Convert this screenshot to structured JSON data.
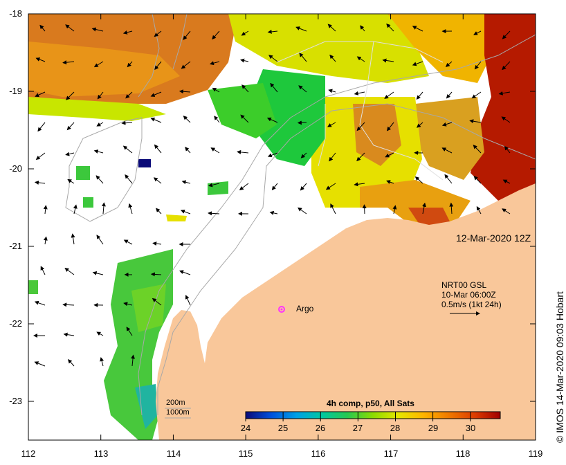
{
  "map": {
    "timestamp_label": "12-Mar-2020 12Z",
    "current_legend": {
      "line1": "NRT00 GSL",
      "line2": "10-Mar 06:00Z",
      "line3": "0.5m/s (1kt 24h)"
    },
    "depth_legend": {
      "shallow": "200m",
      "deep": "1000m"
    },
    "marker": {
      "label": "Argo",
      "color": "#ff33ff"
    },
    "land_color": "#f9c79a",
    "credit": "IMOS 14-Mar-2020 09:03 Hobart",
    "copyright_symbol": "©",
    "colorbar": {
      "title": "4h comp, p50, All Sats",
      "ticks": [
        "24",
        "25",
        "26",
        "27",
        "28",
        "29",
        "30"
      ],
      "min": 24,
      "max": 30.8,
      "colors": [
        "#0a0a78",
        "#0050dc",
        "#00a0e6",
        "#00c8a0",
        "#28c850",
        "#8cdc00",
        "#e6e600",
        "#ffb400",
        "#f07800",
        "#dc3c00",
        "#a00000"
      ]
    },
    "axes": {
      "x_ticks": [
        "112",
        "113",
        "114",
        "115",
        "116",
        "117",
        "118",
        "119"
      ],
      "y_ticks": [
        "-18",
        "-19",
        "-20",
        "-21",
        "-22",
        "-23"
      ],
      "lon_range": [
        112,
        119
      ],
      "lat_range": [
        -23.5,
        -18
      ]
    }
  }
}
